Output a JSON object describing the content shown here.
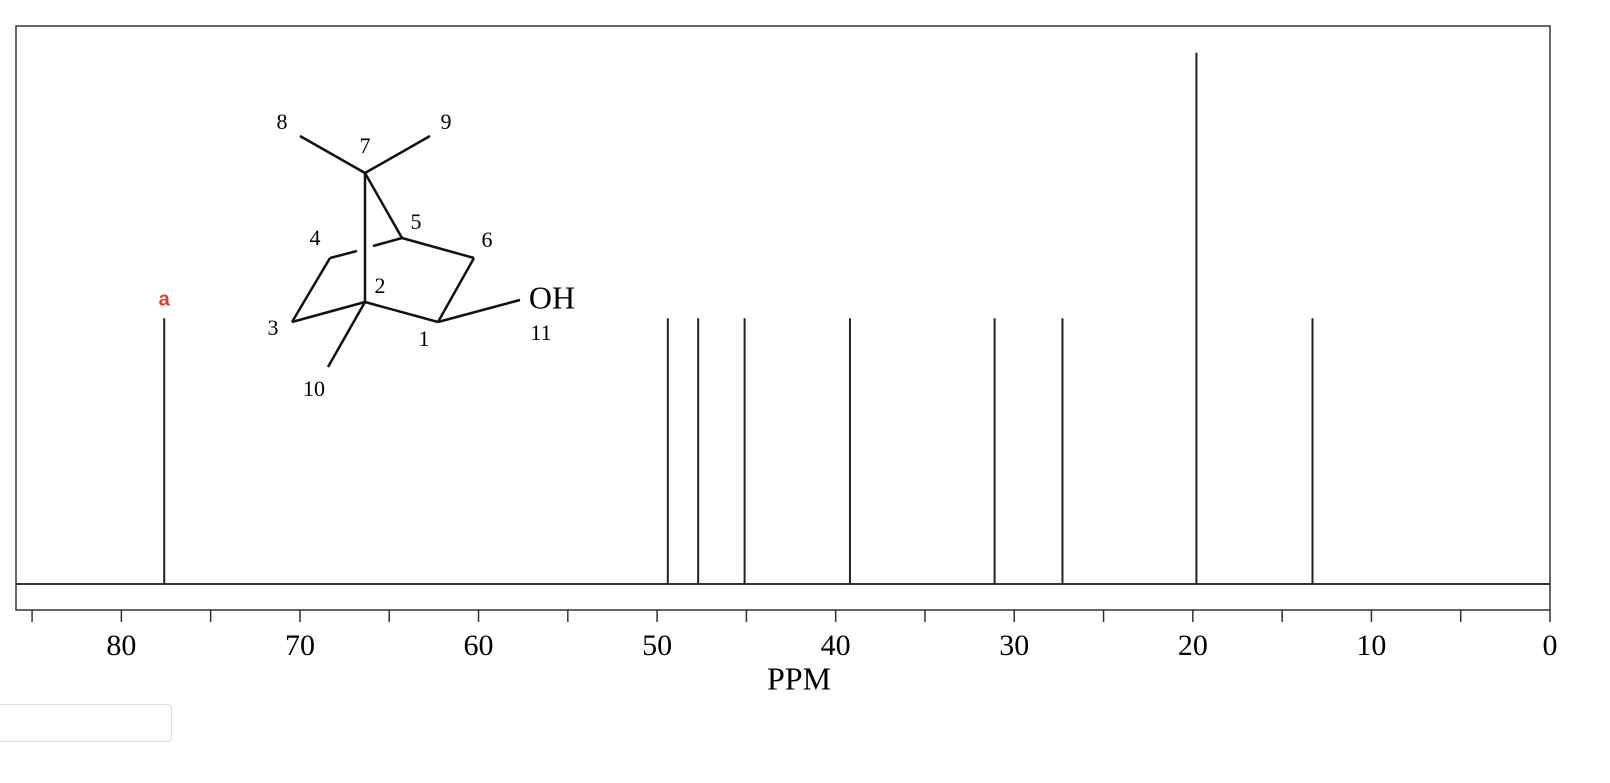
{
  "chart_data": {
    "type": "stem",
    "xlabel": "PPM",
    "x": [
      77.6,
      49.4,
      47.7,
      45.1,
      39.2,
      31.1,
      27.3,
      19.8,
      13.3
    ],
    "values": [
      1,
      1,
      1,
      1,
      1,
      1,
      1,
      2,
      1
    ],
    "color": "#222222",
    "xlim": [
      85.9,
      0
    ],
    "ylim": [
      0,
      2.1
    ],
    "xticks": [
      80,
      70,
      60,
      50,
      40,
      30,
      20,
      10,
      0
    ],
    "xminor": [
      85,
      75,
      65,
      55,
      45,
      35,
      25,
      15,
      5
    ],
    "annotations": [
      {
        "text": "a",
        "x": 77.6,
        "color": "#e8382c"
      }
    ],
    "grid": false
  },
  "structure": {
    "atoms": [
      "1",
      "2",
      "3",
      "4",
      "5",
      "6",
      "7",
      "8",
      "9",
      "10",
      "11"
    ],
    "group": "OH"
  }
}
